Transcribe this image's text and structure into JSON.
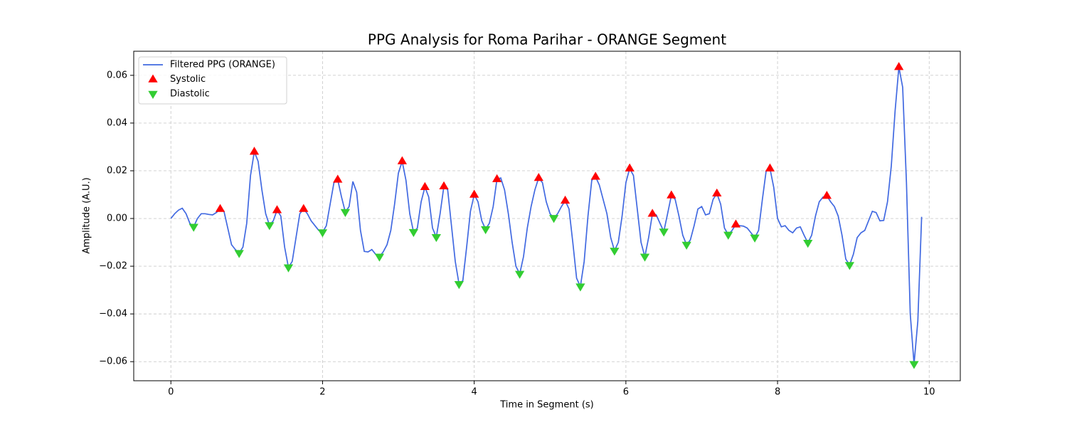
{
  "chart_data": {
    "type": "line",
    "title": "PPG Analysis for Roma Parihar - ORANGE Segment",
    "xlabel": "Time in Segment (s)",
    "ylabel": "Amplitude (A.U.)",
    "xlim": [
      -0.49,
      10.41
    ],
    "ylim": [
      -0.068,
      0.0701
    ],
    "xticks": [
      0,
      2,
      4,
      6,
      8,
      10
    ],
    "yticks": [
      {
        "value": -0.06,
        "label": "−0.06"
      },
      {
        "value": -0.04,
        "label": "−0.04"
      },
      {
        "value": -0.02,
        "label": "−0.02"
      },
      {
        "value": 0,
        "label": "0.00"
      },
      0.02,
      0.04,
      0.06
    ],
    "grid": true,
    "legend": "upper left",
    "series": [
      {
        "name": "Filtered PPG (ORANGE)",
        "type": "line",
        "color": "#4169e1",
        "x": [
          0,
          0.05,
          0.1,
          0.15,
          0.2,
          0.25,
          0.3,
          0.35,
          0.4,
          0.45,
          0.5,
          0.55,
          0.6,
          0.65,
          0.7,
          0.75,
          0.8,
          0.85,
          0.9,
          0.95,
          1.0,
          1.05,
          1.1,
          1.15,
          1.2,
          1.25,
          1.3,
          1.35,
          1.4,
          1.45,
          1.5,
          1.55,
          1.6,
          1.65,
          1.7,
          1.75,
          1.8,
          1.85,
          1.9,
          1.95,
          2.0,
          2.05,
          2.1,
          2.15,
          2.2,
          2.25,
          2.3,
          2.35,
          2.4,
          2.45,
          2.5,
          2.55,
          2.6,
          2.65,
          2.7,
          2.75,
          2.8,
          2.85,
          2.9,
          2.95,
          3.0,
          3.05,
          3.1,
          3.15,
          3.2,
          3.25,
          3.3,
          3.35,
          3.4,
          3.45,
          3.5,
          3.55,
          3.6,
          3.65,
          3.7,
          3.75,
          3.8,
          3.85,
          3.9,
          3.95,
          4.0,
          4.05,
          4.1,
          4.15,
          4.2,
          4.25,
          4.3,
          4.35,
          4.4,
          4.45,
          4.5,
          4.55,
          4.6,
          4.65,
          4.7,
          4.75,
          4.8,
          4.85,
          4.9,
          4.95,
          5.0,
          5.05,
          5.1,
          5.15,
          5.2,
          5.25,
          5.3,
          5.35,
          5.4,
          5.45,
          5.5,
          5.55,
          5.6,
          5.65,
          5.7,
          5.75,
          5.8,
          5.85,
          5.9,
          5.95,
          6.0,
          6.05,
          6.1,
          6.15,
          6.2,
          6.25,
          6.3,
          6.35,
          6.4,
          6.45,
          6.5,
          6.55,
          6.6,
          6.65,
          6.7,
          6.75,
          6.8,
          6.85,
          6.9,
          6.95,
          7.0,
          7.05,
          7.1,
          7.15,
          7.2,
          7.25,
          7.3,
          7.35,
          7.4,
          7.45,
          7.5,
          7.55,
          7.6,
          7.65,
          7.7,
          7.75,
          7.8,
          7.85,
          7.9,
          7.95,
          8.0,
          8.05,
          8.1,
          8.15,
          8.2,
          8.25,
          8.3,
          8.35,
          8.4,
          8.45,
          8.5,
          8.55,
          8.6,
          8.65,
          8.7,
          8.75,
          8.8,
          8.85,
          8.9,
          8.95,
          9.0,
          9.05,
          9.1,
          9.15,
          9.2,
          9.25,
          9.3,
          9.35,
          9.4,
          9.45,
          9.5,
          9.55,
          9.6,
          9.65,
          9.7,
          9.75,
          9.8,
          9.85,
          9.9
        ],
        "values": [
          0,
          0.002,
          0.0035,
          0.0043,
          0.002,
          -0.002,
          -0.0035,
          0,
          0.002,
          0.002,
          0.0017,
          0.0015,
          0.0025,
          0.004,
          0.003,
          -0.004,
          -0.011,
          -0.013,
          -0.0145,
          -0.012,
          -0.002,
          0.018,
          0.028,
          0.024,
          0.012,
          0.002,
          -0.0028,
          -0.001,
          0.0035,
          0.001,
          -0.012,
          -0.0205,
          -0.018,
          -0.008,
          0.002,
          0.004,
          0.002,
          -0.001,
          -0.003,
          -0.005,
          -0.0058,
          -0.003,
          0.006,
          0.015,
          0.0163,
          0.009,
          0.0027,
          0.005,
          0.0155,
          0.011,
          -0.005,
          -0.0138,
          -0.014,
          -0.013,
          -0.015,
          -0.016,
          -0.014,
          -0.011,
          -0.005,
          0.006,
          0.019,
          0.024,
          0.016,
          0.002,
          -0.0057,
          -0.004,
          0.007,
          0.0132,
          0.009,
          -0.004,
          -0.0078,
          0.002,
          0.0135,
          0.012,
          -0.003,
          -0.018,
          -0.0275,
          -0.026,
          -0.012,
          0.003,
          0.01,
          0.007,
          -0.001,
          -0.0045,
          -0.002,
          0.005,
          0.0165,
          0.017,
          0.012,
          0.002,
          -0.01,
          -0.02,
          -0.0232,
          -0.016,
          -0.004,
          0.005,
          0.012,
          0.017,
          0.015,
          0.007,
          0.002,
          0.0002,
          0.002,
          0.005,
          0.0075,
          0.004,
          -0.01,
          -0.025,
          -0.0285,
          -0.018,
          0.001,
          0.016,
          0.0175,
          0.014,
          0.008,
          0.002,
          -0.008,
          -0.0135,
          -0.01,
          0.001,
          0.015,
          0.021,
          0.018,
          0.004,
          -0.01,
          -0.016,
          -0.008,
          0.002,
          0.0015,
          -0.002,
          -0.0055,
          0.002,
          0.0097,
          0.008,
          0.001,
          -0.007,
          -0.011,
          -0.009,
          -0.003,
          0.004,
          0.005,
          0.0015,
          0.002,
          0.008,
          0.0105,
          0.006,
          -0.004,
          -0.0068,
          -0.005,
          -0.0025,
          -0.003,
          -0.0032,
          -0.004,
          -0.006,
          -0.008,
          -0.005,
          0.008,
          0.02,
          0.021,
          0.013,
          0,
          -0.0035,
          -0.003,
          -0.005,
          -0.006,
          -0.004,
          -0.0035,
          -0.007,
          -0.0102,
          -0.007,
          0.001,
          0.007,
          0.009,
          0.0095,
          0.007,
          0.005,
          0.001,
          -0.007,
          -0.017,
          -0.0195,
          -0.015,
          -0.008,
          -0.006,
          -0.005,
          -0.001,
          0.003,
          0.0025,
          -0.001,
          -0.0008,
          0.007,
          0.022,
          0.045,
          0.0635,
          0.055,
          0.015,
          -0.04,
          -0.061,
          -0.043,
          0.0007
        ]
      },
      {
        "name": "Systolic",
        "type": "scatter",
        "marker": "triangle-up",
        "color": "#ff0000",
        "x": [
          0.65,
          1.1,
          1.4,
          1.75,
          2.2,
          3.05,
          3.35,
          3.6,
          4.0,
          4.3,
          4.85,
          5.2,
          5.6,
          6.05,
          6.35,
          6.6,
          7.2,
          7.45,
          7.9,
          8.65,
          9.6
        ],
        "values": [
          0.004,
          0.028,
          0.0035,
          0.004,
          0.0163,
          0.024,
          0.0132,
          0.0135,
          0.01,
          0.0165,
          0.017,
          0.0075,
          0.0175,
          0.021,
          0.002,
          0.0097,
          0.0105,
          -0.0025,
          0.021,
          0.0095,
          0.0635
        ]
      },
      {
        "name": "Diastolic",
        "type": "scatter",
        "marker": "triangle-down",
        "color": "#32cd32",
        "x": [
          0.3,
          0.9,
          1.3,
          1.55,
          2.0,
          2.3,
          2.75,
          3.2,
          3.5,
          3.8,
          4.15,
          4.6,
          5.05,
          5.4,
          5.85,
          6.25,
          6.5,
          6.8,
          7.35,
          7.7,
          8.4,
          8.95,
          9.8
        ],
        "values": [
          -0.0035,
          -0.0145,
          -0.0028,
          -0.0205,
          -0.0058,
          0.0027,
          -0.016,
          -0.0057,
          -0.0078,
          -0.0275,
          -0.0045,
          -0.0232,
          0.0002,
          -0.0285,
          -0.0135,
          -0.016,
          -0.0055,
          -0.011,
          -0.0068,
          -0.008,
          -0.0102,
          -0.0195,
          -0.061
        ]
      }
    ]
  }
}
